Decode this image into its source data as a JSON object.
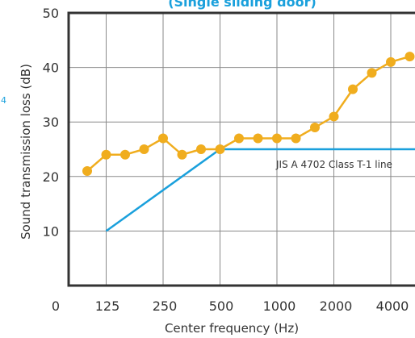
{
  "chart_data": {
    "type": "line",
    "title": "(Single sliding door)",
    "xlabel": "Center frequency (Hz)",
    "ylabel": "Sound transmission loss (dB)",
    "ylim": [
      0,
      50
    ],
    "y_ticks": [
      10,
      20,
      30,
      40,
      50
    ],
    "x_tick_labels": [
      "0",
      "125",
      "250",
      "500",
      "1000",
      "2000",
      "4000"
    ],
    "x": [
      "100",
      "125",
      "160",
      "200",
      "250",
      "315",
      "400",
      "500",
      "630",
      "800",
      "1000",
      "1250",
      "1600",
      "2000",
      "2500",
      "3150",
      "4000",
      "5000"
    ],
    "series": [
      {
        "values": [
          21,
          24,
          24,
          25,
          27,
          24,
          25,
          25,
          27,
          27,
          27,
          27,
          29,
          31,
          36,
          39,
          41,
          42
        ],
        "color": "#f0ad1e"
      },
      {
        "name": "JIS A 4702  Class T-1 line",
        "points": [
          {
            "x": "125",
            "y": 10
          },
          {
            "x": "500",
            "y": 25
          },
          {
            "x": "5000",
            "y": 25
          }
        ],
        "color": "#1aa0dc"
      }
    ],
    "grid": true,
    "title_color": "#1aa0dc",
    "stray_text": "4",
    "stray_text_color": "#1aa0dc",
    "marker": "circle"
  }
}
